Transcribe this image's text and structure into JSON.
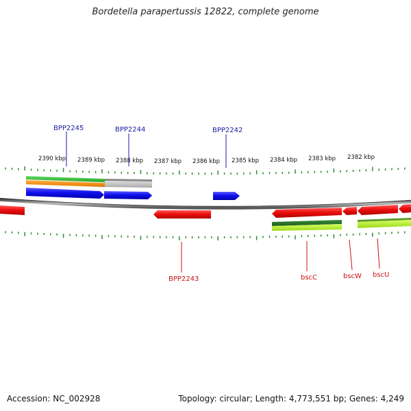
{
  "title": "Bordetella parapertussis 12822, complete genome",
  "footer": {
    "accession": "Accession: NC_002928",
    "topology": "Topology: circular; Length: 4,773,551 bp; Genes: 4,249"
  },
  "ruler": {
    "labels": [
      "2390 kbp",
      "2389 kbp",
      "2388 kbp",
      "2387 kbp",
      "2386 kbp",
      "2385 kbp",
      "2384 kbp",
      "2383 kbp",
      "2382 kbp"
    ]
  },
  "top_gene_labels": [
    "BPP2245",
    "BPP2244",
    "BPP2242"
  ],
  "bottom_gene_labels": [
    "BPP2243",
    "bscC",
    "bscW",
    "bscU"
  ],
  "colors": {
    "forward_gene": "#1010ee",
    "reverse_gene": "#ee1010",
    "top_label": "#1a1aa0",
    "bottom_label": "#cc1010",
    "ticks": "#2e8b2e",
    "backbone": "#777777"
  }
}
